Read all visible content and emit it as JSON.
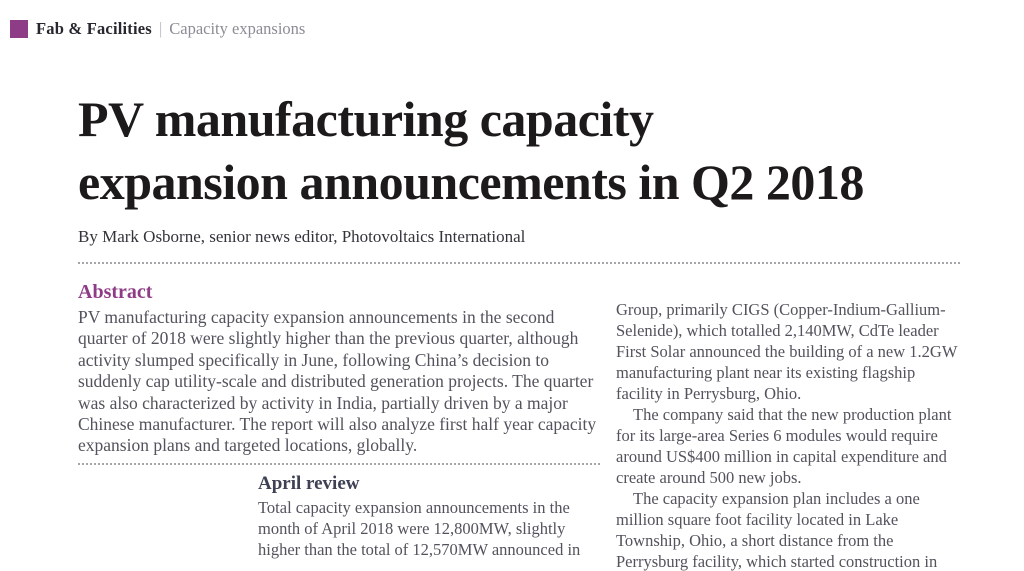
{
  "kicker": {
    "section": "Fab & Facilities",
    "separator": "|",
    "topic": "Capacity expansions"
  },
  "article": {
    "title": "PV manufacturing capacity\nexpansion announcements in Q2 2018",
    "byline": "By Mark Osborne, senior news editor, Photovoltaics International"
  },
  "abstract": {
    "heading": "Abstract",
    "body": "PV manufacturing capacity expansion announcements in the second quarter of 2018 were slightly higher than the previous quarter, although activity slumped specifically in June, following China’s decision to suddenly cap utility-scale and distributed generation projects. The quarter was also characterized by activity in India, partially driven by a major Chinese manufacturer. The report will also analyze first half year capacity expansion plans and targeted locations, globally."
  },
  "april_review": {
    "heading": "April review",
    "body": "Total capacity expansion announcements in the month of April 2018 were 12,800MW, slightly higher than the total of 12,570MW announced in"
  },
  "continuation_column": {
    "paragraphs": [
      "Group, primarily CIGS (Copper-Indium-Gallium-Selenide), which totalled 2,140MW, CdTe leader First Solar announced the building of a new 1.2GW manufacturing plant near its existing flagship facility in Perrysburg, Ohio.",
      "The company said that the new production plant for its large-area Series 6 modules would require around US$400 million in capital expenditure and create around 500 new jobs.",
      "The capacity expansion plan includes a one million square foot facility located in Lake Township, Ohio, a short distance from the Perrysburg facility, which started construction in"
    ]
  },
  "colors": {
    "accent_purple": "#8e3c86",
    "title_text": "#1d1a1b",
    "body_text": "#52535c",
    "subheading_slate": "#3e4154",
    "kicker_topic_gray": "#8d8b95",
    "dotted_rule_gray": "#8f8f95"
  }
}
